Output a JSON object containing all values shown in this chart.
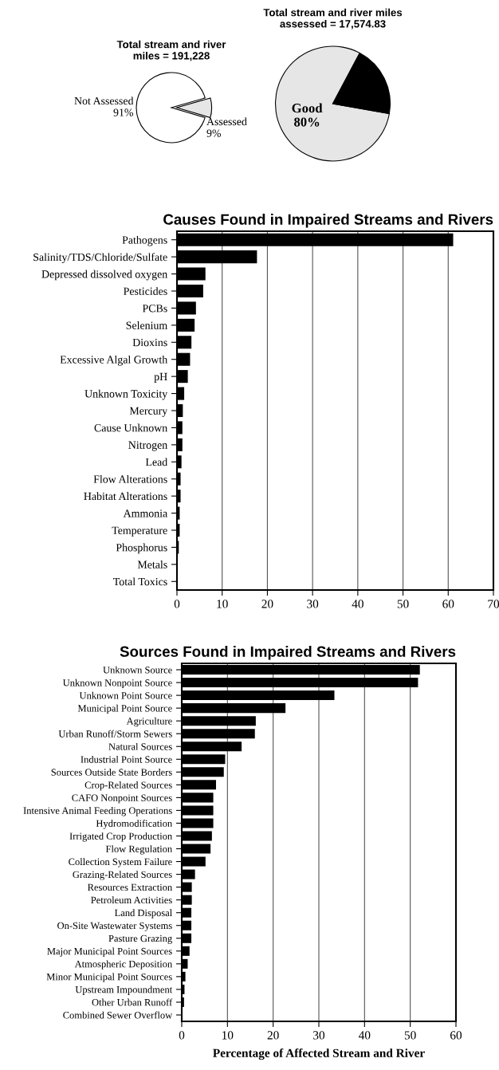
{
  "chart_data": [
    {
      "type": "pie",
      "title": "Total stream and river\nmiles = 191,228",
      "categories": [
        "Not Assessed",
        "Assessed"
      ],
      "values": [
        91,
        9
      ],
      "value_labels": [
        "91%",
        "9%"
      ],
      "colors": [
        "#ffffff",
        "#e6e6e6"
      ]
    },
    {
      "type": "pie",
      "title": "Total stream and river miles\nassessed = 17,574.83",
      "categories": [
        "Good",
        null
      ],
      "values": [
        80,
        20
      ],
      "value_labels": [
        "80%",
        null
      ],
      "colors": [
        "#e6e6e6",
        "#000000"
      ]
    },
    {
      "type": "bar",
      "orientation": "horizontal",
      "title": "Causes Found in Impaired Streams and Rivers",
      "categories": [
        "Pathogens",
        "Salinity/TDS/Chloride/Sulfate",
        "Depressed dissolved oxygen",
        "Pesticides",
        "PCBs",
        "Selenium",
        "Dioxins",
        "Excessive Algal Growth",
        "pH",
        "Unknown Toxicity",
        "Mercury",
        "Cause Unknown",
        "Nitrogen",
        "Lead",
        "Flow Alterations",
        "Habitat Alterations",
        "Ammonia",
        "Temperature",
        "Phosphorus",
        "Metals",
        "Total Toxics"
      ],
      "values": [
        61.1,
        17.7,
        6.3,
        5.8,
        4.2,
        3.9,
        3.2,
        2.9,
        2.4,
        1.6,
        1.3,
        1.2,
        1.2,
        1.0,
        0.8,
        0.8,
        0.6,
        0.6,
        0.4,
        0.1,
        0.1
      ],
      "color": "#000000",
      "xlim": [
        0,
        70
      ],
      "xticks": [
        0,
        10,
        20,
        30,
        40,
        50,
        60,
        70
      ],
      "grid": "x"
    },
    {
      "type": "bar",
      "orientation": "horizontal",
      "title": "Sources Found in Impaired Streams and Rivers",
      "xlabel": "Percentage of Affected Stream and River",
      "categories": [
        "Unknown Source",
        "Unknown Nonpoint Source",
        "Unknown Point Source",
        "Municipal Point Source",
        "Agriculture",
        "Urban Runoff/Storm Sewers",
        "Natural Sources",
        "Industrial Point Source",
        "Sources Outside State Borders",
        "Crop-Related Sources",
        "CAFO Nonpoint Sources",
        "Intensive Animal Feeding Operations",
        "Hydromodification",
        "Irrigated Crop Production",
        "Flow Regulation",
        "Collection System Failure",
        "Grazing-Related Sources",
        "Resources Extraction",
        "Petroleum Activities",
        "Land Disposal",
        "On-Site Wastewater Systems",
        "Pasture Grazing",
        "Major Municipal Point Sources",
        "Atmospheric Deposition",
        "Minor Municipal Point Sources",
        "Upstream Impoundment",
        "Other Urban Runoff",
        "Combined Sewer Overflow"
      ],
      "values": [
        52.1,
        51.7,
        33.4,
        22.7,
        16.2,
        16.0,
        13.1,
        9.5,
        9.2,
        7.5,
        6.9,
        6.9,
        6.9,
        6.6,
        6.3,
        5.2,
        2.9,
        2.2,
        2.2,
        2.1,
        2.1,
        2.1,
        1.7,
        1.3,
        0.8,
        0.6,
        0.5,
        null
      ],
      "color": "#000000",
      "xlim": [
        0,
        60
      ],
      "xticks": [
        0,
        10,
        20,
        30,
        40,
        50,
        60
      ],
      "grid": "x"
    }
  ]
}
